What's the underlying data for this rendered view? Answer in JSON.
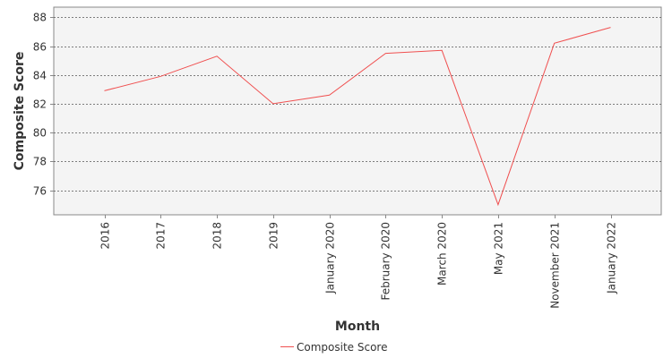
{
  "chart_data": {
    "type": "line",
    "title": "",
    "xlabel": "Month",
    "ylabel": "Composite Score",
    "categories": [
      "2016",
      "2017",
      "2018",
      "2019",
      "January 2020",
      "February 2020",
      "March 2020",
      "May 2021",
      "November 2021",
      "January 2022"
    ],
    "series": [
      {
        "name": "Composite Score",
        "values": [
          82.9,
          83.9,
          85.3,
          82.0,
          82.6,
          85.5,
          85.7,
          75.0,
          86.2,
          87.3
        ],
        "color": "#f05050"
      }
    ],
    "yticks": [
      76,
      78,
      80,
      82,
      84,
      86,
      88
    ],
    "ylim": [
      74.3,
      88.7
    ],
    "grid": true,
    "legend_position": "bottom",
    "colors": {
      "plot_background": "#f4f4f4",
      "grid": "#555555",
      "axis": "#888888"
    }
  }
}
